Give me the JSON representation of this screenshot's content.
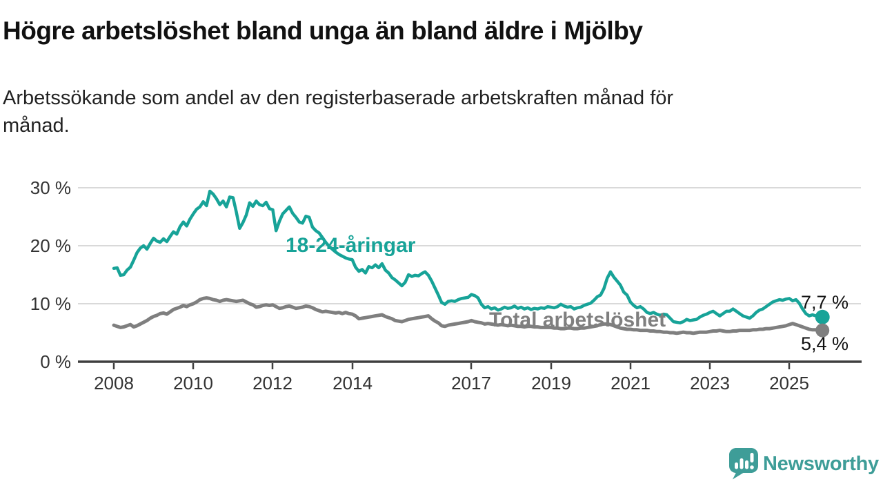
{
  "title": "Högre arbetslöshet bland unga än bland äldre i Mjölby",
  "subtitle": {
    "full": "Arbetssökande som andel av den registerbaserade arbetskraften månad för månad.",
    "lines": [
      "Arbetssökande som andel av den registerbaserade arbetskraften månad för",
      "månad."
    ]
  },
  "colors": {
    "young_line": "#17A398",
    "total_line": "#7F7F7F",
    "grid": "#D9D9D9",
    "axis": "#3F3F3F",
    "text": "#333333",
    "logo_teal": "#3E9D98"
  },
  "y_axis": {
    "ticks": [
      "30 %",
      "20 %",
      "10 %",
      "0 %"
    ]
  },
  "x_axis": {
    "ticks": [
      "2008",
      "2010",
      "2012",
      "2014",
      "2017",
      "2019",
      "2021",
      "2023",
      "2025"
    ]
  },
  "annotations": {
    "young_series_label": "18-24-åringar",
    "total_series_label": "Total arbetslöshet",
    "young_end_value": "7,7 %",
    "total_end_value": "5,4 %"
  },
  "logo": {
    "brand": "Newsworthy"
  },
  "chart_data": {
    "type": "line",
    "title": "Högre arbetslöshet bland unga än bland äldre i Mjölby",
    "subtitle": "Arbetssökande som andel av den registerbaserade arbetskraften månad för månad.",
    "x_unit": "monthly, decimal years",
    "x_start": 2008.0,
    "x_step_years": 0.08333,
    "xlim": [
      2007.1,
      2026.8
    ],
    "ylim": [
      0,
      32
    ],
    "grid": "horizontal only",
    "y_tick_values": [
      0,
      10,
      20,
      30
    ],
    "x_tick_values": [
      2008,
      2010,
      2012,
      2014,
      2017,
      2019,
      2021,
      2023,
      2025
    ],
    "legend_position": "inline labels on lines",
    "series": [
      {
        "name": "18-24-åringar",
        "color": "#17A398",
        "end_label": "7,7 %",
        "values": [
          16.1,
          16.2,
          14.9,
          15.0,
          15.8,
          16.3,
          17.5,
          18.8,
          19.6,
          20.0,
          19.4,
          20.4,
          21.3,
          20.8,
          20.6,
          21.2,
          20.7,
          21.6,
          22.4,
          22.0,
          23.3,
          24.1,
          23.4,
          24.6,
          25.5,
          26.3,
          26.7,
          27.6,
          26.9,
          29.4,
          28.9,
          28.1,
          27.1,
          27.7,
          26.7,
          28.4,
          28.3,
          25.8,
          23.0,
          24.0,
          25.3,
          27.4,
          26.8,
          27.7,
          27.1,
          26.9,
          27.5,
          26.4,
          26.2,
          22.6,
          24.2,
          25.5,
          26.1,
          26.7,
          25.6,
          24.9,
          24.1,
          23.9,
          25.1,
          24.9,
          23.2,
          22.6,
          22.2,
          21.4,
          20.6,
          19.9,
          19.4,
          18.9,
          18.5,
          18.2,
          17.9,
          17.7,
          17.6,
          16.3,
          15.6,
          15.9,
          15.3,
          16.4,
          16.2,
          16.7,
          16.2,
          16.9,
          15.8,
          15.3,
          14.5,
          14.1,
          13.6,
          13.1,
          13.7,
          15.0,
          14.7,
          14.9,
          14.8,
          15.2,
          15.5,
          14.9,
          13.9,
          12.7,
          11.5,
          10.2,
          9.9,
          10.4,
          10.5,
          10.4,
          10.7,
          10.9,
          11.0,
          11.1,
          11.6,
          11.4,
          11.0,
          9.9,
          9.3,
          9.5,
          9.1,
          9.3,
          8.9,
          9.1,
          9.4,
          9.2,
          9.3,
          9.6,
          9.2,
          9.4,
          9.1,
          9.3,
          9.0,
          9.2,
          9.1,
          9.3,
          9.2,
          9.5,
          9.4,
          9.3,
          9.5,
          9.9,
          9.6,
          9.4,
          9.5,
          9.1,
          9.3,
          9.4,
          9.7,
          9.9,
          10.1,
          10.6,
          11.2,
          11.5,
          12.6,
          14.4,
          15.5,
          14.6,
          13.9,
          13.2,
          12.0,
          11.5,
          10.3,
          9.7,
          9.3,
          9.5,
          9.1,
          8.5,
          8.3,
          8.5,
          8.2,
          8.0,
          8.2,
          8.1,
          7.5,
          6.9,
          6.8,
          6.7,
          6.9,
          7.3,
          7.1,
          7.2,
          7.3,
          7.7,
          8.0,
          8.2,
          8.5,
          8.7,
          8.3,
          7.9,
          8.3,
          8.7,
          8.7,
          9.1,
          8.7,
          8.3,
          7.9,
          7.7,
          7.5,
          7.9,
          8.5,
          8.9,
          9.1,
          9.5,
          9.9,
          10.3,
          10.5,
          10.7,
          10.6,
          10.8,
          10.9,
          10.5,
          10.7,
          10.1,
          9.1,
          8.3,
          7.9,
          8.1,
          7.9,
          7.8,
          7.7
        ]
      },
      {
        "name": "Total arbetslöshet",
        "color": "#7F7F7F",
        "end_label": "5,4 %",
        "values": [
          6.3,
          6.1,
          5.9,
          6.0,
          6.2,
          6.4,
          6.0,
          6.2,
          6.5,
          6.8,
          7.1,
          7.5,
          7.8,
          8.0,
          8.3,
          8.4,
          8.2,
          8.6,
          9.0,
          9.2,
          9.4,
          9.7,
          9.5,
          9.8,
          10.0,
          10.3,
          10.7,
          10.9,
          11.0,
          10.9,
          10.7,
          10.6,
          10.4,
          10.6,
          10.7,
          10.6,
          10.5,
          10.4,
          10.5,
          10.6,
          10.3,
          10.0,
          9.8,
          9.4,
          9.5,
          9.7,
          9.8,
          9.7,
          9.8,
          9.5,
          9.2,
          9.3,
          9.5,
          9.6,
          9.4,
          9.2,
          9.3,
          9.4,
          9.6,
          9.5,
          9.3,
          9.0,
          8.8,
          8.6,
          8.7,
          8.6,
          8.5,
          8.4,
          8.5,
          8.3,
          8.5,
          8.3,
          8.2,
          7.9,
          7.4,
          7.5,
          7.6,
          7.7,
          7.8,
          7.9,
          8.0,
          8.1,
          7.8,
          7.6,
          7.4,
          7.1,
          7.0,
          6.9,
          7.1,
          7.3,
          7.4,
          7.5,
          7.6,
          7.7,
          7.8,
          7.9,
          7.4,
          7.0,
          6.7,
          6.2,
          6.1,
          6.3,
          6.4,
          6.5,
          6.6,
          6.7,
          6.8,
          6.9,
          7.1,
          6.9,
          6.8,
          6.7,
          6.5,
          6.6,
          6.5,
          6.4,
          6.3,
          6.4,
          6.3,
          6.2,
          6.3,
          6.2,
          6.1,
          6.1,
          6.0,
          6.1,
          6.1,
          6.0,
          6.0,
          5.9,
          5.9,
          5.9,
          5.9,
          5.8,
          5.8,
          5.7,
          5.7,
          5.8,
          5.8,
          5.7,
          5.7,
          5.8,
          5.8,
          5.9,
          6.0,
          6.1,
          6.2,
          6.4,
          6.5,
          6.5,
          6.4,
          6.2,
          6.0,
          5.8,
          5.7,
          5.6,
          5.6,
          5.5,
          5.5,
          5.4,
          5.4,
          5.4,
          5.3,
          5.3,
          5.2,
          5.2,
          5.1,
          5.1,
          5.0,
          5.0,
          4.9,
          5.0,
          5.1,
          5.0,
          5.0,
          4.9,
          5.0,
          5.1,
          5.1,
          5.1,
          5.2,
          5.3,
          5.3,
          5.4,
          5.3,
          5.2,
          5.2,
          5.3,
          5.3,
          5.4,
          5.4,
          5.4,
          5.4,
          5.5,
          5.5,
          5.6,
          5.6,
          5.7,
          5.7,
          5.8,
          5.9,
          6.0,
          6.1,
          6.2,
          6.4,
          6.6,
          6.4,
          6.2,
          6.0,
          5.8,
          5.6,
          5.5,
          5.5,
          5.4,
          5.4
        ]
      }
    ]
  }
}
